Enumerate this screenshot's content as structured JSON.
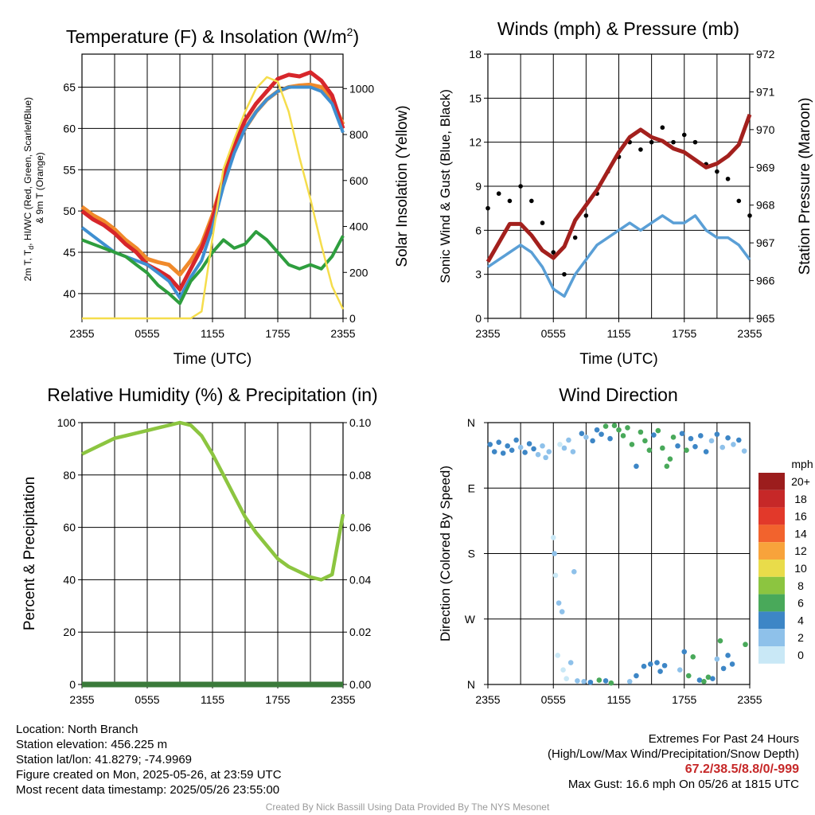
{
  "colors": {
    "temp": "#d7262b",
    "dew": "#3f8fd1",
    "hiwc": "#2e9e3e",
    "t9m": "#f08a2b",
    "solar": "#f5dd4c",
    "wind": "#5a9fd6",
    "gust": "#000000",
    "pressure": "#a3201d",
    "rh": "#8cc540",
    "precip": "#3a7a3a"
  },
  "chart_data": [
    {
      "id": "temperature",
      "type": "line",
      "title": "Temperature (F) & Insolation (W/m²)",
      "xlabel": "Time (UTC)",
      "ylabel": "2m T, Td, HI/WC (Red, Green, Scarlet/Blue) & 9m T (Orange)",
      "ylabel2": "Solar Insolation (Yellow)",
      "xticks": [
        "2355",
        "0555",
        "1155",
        "1755",
        "2355"
      ],
      "x_hours": [
        0,
        1,
        2,
        3,
        4,
        5,
        6,
        7,
        8,
        9,
        10,
        11,
        12,
        13,
        14,
        15,
        16,
        17,
        18,
        19,
        20,
        21,
        22,
        23,
        24
      ],
      "ylim": [
        37,
        69
      ],
      "yticks": [
        40,
        45,
        50,
        55,
        60,
        65
      ],
      "ylim2": [
        0,
        1150
      ],
      "yticks2": [
        0,
        200,
        400,
        600,
        800,
        1000
      ],
      "series": [
        {
          "key": "t9m",
          "axis": "left",
          "values": [
            50.5,
            49.5,
            48.8,
            47.8,
            46.5,
            45.5,
            44.2,
            43.8,
            43.5,
            42.3,
            44.0,
            46.0,
            49.5,
            54.0,
            57.5,
            60.0,
            62.0,
            63.5,
            64.5,
            65.0,
            65.2,
            65.3,
            65.0,
            63.5,
            60.5
          ]
        },
        {
          "key": "temp",
          "axis": "left",
          "values": [
            50.0,
            49.0,
            48.3,
            47.3,
            46.0,
            45.0,
            43.5,
            42.8,
            42.0,
            40.5,
            43.0,
            45.5,
            49.0,
            54.0,
            58.0,
            61.0,
            63.0,
            64.5,
            66.0,
            66.5,
            66.3,
            66.8,
            65.8,
            64.0,
            60.0
          ]
        },
        {
          "key": "dew",
          "axis": "left",
          "values": [
            48.0,
            47.0,
            46.0,
            45.0,
            44.5,
            44.0,
            43.5,
            42.5,
            41.5,
            39.5,
            42.0,
            44.0,
            48.0,
            53.0,
            57.0,
            60.0,
            62.0,
            63.5,
            64.5,
            65.0,
            65.0,
            65.0,
            64.5,
            63.0,
            59.5
          ]
        },
        {
          "key": "hiwc",
          "axis": "left",
          "values": [
            46.5,
            46.0,
            45.5,
            45.0,
            44.5,
            43.5,
            42.5,
            41.0,
            40.0,
            38.8,
            41.5,
            43.0,
            45.0,
            46.5,
            45.5,
            46.0,
            47.5,
            46.5,
            45.0,
            43.5,
            43.0,
            43.5,
            43.0,
            44.5,
            47.0
          ]
        },
        {
          "key": "solar",
          "axis": "right",
          "values": [
            0,
            0,
            0,
            0,
            0,
            0,
            0,
            0,
            0,
            0,
            0,
            30,
            350,
            650,
            780,
            900,
            1000,
            1050,
            1030,
            900,
            700,
            520,
            320,
            140,
            40
          ]
        }
      ]
    },
    {
      "id": "winds",
      "type": "line",
      "title": "Winds (mph) & Pressure (mb)",
      "xlabel": "Time (UTC)",
      "ylabel": "Sonic Wind & Gust (Blue, Black)",
      "ylabel2": "Station Pressure (Maroon)",
      "xticks": [
        "2355",
        "0555",
        "1155",
        "1755",
        "2355"
      ],
      "x_hours": [
        0,
        1,
        2,
        3,
        4,
        5,
        6,
        7,
        8,
        9,
        10,
        11,
        12,
        13,
        14,
        15,
        16,
        17,
        18,
        19,
        20,
        21,
        22,
        23,
        24
      ],
      "ylim": [
        0,
        18
      ],
      "yticks": [
        0,
        3,
        6,
        9,
        12,
        15,
        18
      ],
      "ylim2": [
        965,
        972
      ],
      "yticks2": [
        965,
        966,
        967,
        968,
        969,
        970,
        971,
        972
      ],
      "series": [
        {
          "key": "wind",
          "axis": "left",
          "values": [
            3.5,
            4.0,
            4.5,
            5.0,
            4.5,
            3.5,
            2.0,
            1.5,
            3.0,
            4.0,
            5.0,
            5.5,
            6.0,
            6.5,
            6.0,
            6.5,
            7.0,
            6.5,
            6.5,
            7.0,
            6.0,
            5.5,
            5.5,
            5.0,
            4.0
          ]
        },
        {
          "key": "gust",
          "axis": "left",
          "values": [
            7.5,
            8.5,
            8.0,
            9.0,
            8.0,
            6.5,
            4.5,
            3.0,
            5.5,
            7.0,
            8.5,
            10.0,
            11.0,
            12.0,
            11.5,
            12.0,
            13.0,
            12.0,
            12.5,
            12.0,
            10.5,
            10.0,
            9.5,
            8.0,
            7.0
          ]
        },
        {
          "key": "pressure",
          "axis": "right",
          "values": [
            966.5,
            967.0,
            967.5,
            967.5,
            967.2,
            966.8,
            966.6,
            966.9,
            967.6,
            968.0,
            968.4,
            968.9,
            969.4,
            969.8,
            970.0,
            969.8,
            969.7,
            969.5,
            969.4,
            969.2,
            969.0,
            969.1,
            969.3,
            969.6,
            970.4
          ]
        }
      ]
    },
    {
      "id": "humidity",
      "type": "line",
      "title": "Relative Humidity (%) & Precipitation (in)",
      "ylabel": "Percent & Precipitation",
      "xticks": [
        "2355",
        "0555",
        "1155",
        "1755",
        "2355"
      ],
      "x_hours": [
        0,
        1,
        2,
        3,
        4,
        5,
        6,
        7,
        8,
        9,
        10,
        11,
        12,
        13,
        14,
        15,
        16,
        17,
        18,
        19,
        20,
        21,
        22,
        23,
        24
      ],
      "ylim": [
        0,
        100
      ],
      "yticks": [
        0,
        20,
        40,
        60,
        80,
        100
      ],
      "ylim2": [
        0,
        0.1
      ],
      "yticks2": [
        "0.00",
        "0.02",
        "0.04",
        "0.06",
        "0.08",
        "0.10"
      ],
      "series": [
        {
          "key": "rh",
          "axis": "left",
          "values": [
            88,
            90,
            92,
            94,
            95,
            96,
            97,
            98,
            99,
            100,
            99,
            95,
            88,
            80,
            72,
            64,
            58,
            53,
            48,
            45,
            43,
            41,
            40,
            42,
            65
          ]
        },
        {
          "key": "precip",
          "axis": "right",
          "values": [
            0,
            0,
            0,
            0,
            0,
            0,
            0,
            0,
            0,
            0,
            0,
            0,
            0,
            0,
            0,
            0,
            0,
            0,
            0,
            0,
            0,
            0,
            0,
            0,
            0
          ]
        }
      ]
    },
    {
      "id": "direction",
      "type": "scatter",
      "title": "Wind Direction",
      "ylabel": "Direction (Colored By Speed)",
      "xticks": [
        "2355",
        "0555",
        "1155",
        "1755",
        "2355"
      ],
      "yticks": [
        "N",
        "W",
        "S",
        "E",
        "N"
      ],
      "ylim": [
        0,
        360
      ],
      "legend_title": "mph",
      "legend": [
        {
          "label": "20+",
          "color": "#9c1d1d"
        },
        {
          "label": "18",
          "color": "#c62828"
        },
        {
          "label": "16",
          "color": "#e2392a"
        },
        {
          "label": "14",
          "color": "#f2632d"
        },
        {
          "label": "12",
          "color": "#f8a33b"
        },
        {
          "label": "10",
          "color": "#e9dc4a"
        },
        {
          "label": "8",
          "color": "#8cc540"
        },
        {
          "label": "6",
          "color": "#49a95a"
        },
        {
          "label": "4",
          "color": "#3d86c6"
        },
        {
          "label": "2",
          "color": "#8ec1ea"
        },
        {
          "label": "0",
          "color": "#c9e8f6"
        }
      ],
      "points": [
        {
          "h": 0.2,
          "deg": 330,
          "s": 4
        },
        {
          "h": 0.6,
          "deg": 320,
          "s": 4
        },
        {
          "h": 1.0,
          "deg": 333,
          "s": 4
        },
        {
          "h": 1.4,
          "deg": 318,
          "s": 5
        },
        {
          "h": 1.8,
          "deg": 328,
          "s": 4
        },
        {
          "h": 2.2,
          "deg": 322,
          "s": 4
        },
        {
          "h": 2.6,
          "deg": 336,
          "s": 4
        },
        {
          "h": 3.0,
          "deg": 326,
          "s": 3
        },
        {
          "h": 3.4,
          "deg": 319,
          "s": 4
        },
        {
          "h": 3.8,
          "deg": 331,
          "s": 4
        },
        {
          "h": 4.2,
          "deg": 324,
          "s": 4
        },
        {
          "h": 4.6,
          "deg": 316,
          "s": 3
        },
        {
          "h": 5.0,
          "deg": 328,
          "s": 3
        },
        {
          "h": 5.3,
          "deg": 312,
          "s": 2
        },
        {
          "h": 5.6,
          "deg": 320,
          "s": 2
        },
        {
          "h": 6.0,
          "deg": 202,
          "s": 1
        },
        {
          "h": 6.1,
          "deg": 180,
          "s": 3
        },
        {
          "h": 6.2,
          "deg": 150,
          "s": 1
        },
        {
          "h": 6.5,
          "deg": 112,
          "s": 2
        },
        {
          "h": 6.8,
          "deg": 100,
          "s": 2
        },
        {
          "h": 6.4,
          "deg": 40,
          "s": 1
        },
        {
          "h": 6.9,
          "deg": 20,
          "s": 1
        },
        {
          "h": 7.2,
          "deg": 8,
          "s": 1
        },
        {
          "h": 7.6,
          "deg": 30,
          "s": 2
        },
        {
          "h": 7.9,
          "deg": 155,
          "s": 2
        },
        {
          "h": 8.2,
          "deg": 5,
          "s": 2
        },
        {
          "h": 6.6,
          "deg": 330,
          "s": 1
        },
        {
          "h": 7.0,
          "deg": 325,
          "s": 2
        },
        {
          "h": 7.4,
          "deg": 336,
          "s": 3
        },
        {
          "h": 7.8,
          "deg": 320,
          "s": 3
        },
        {
          "h": 8.6,
          "deg": 345,
          "s": 4
        },
        {
          "h": 9.0,
          "deg": 340,
          "s": 3
        },
        {
          "h": 9.6,
          "deg": 335,
          "s": 4
        },
        {
          "h": 10.0,
          "deg": 350,
          "s": 4
        },
        {
          "h": 10.4,
          "deg": 344,
          "s": 5
        },
        {
          "h": 10.8,
          "deg": 355,
          "s": 6
        },
        {
          "h": 11.2,
          "deg": 338,
          "s": 5
        },
        {
          "h": 11.6,
          "deg": 356,
          "s": 6
        },
        {
          "h": 12.0,
          "deg": 350,
          "s": 6
        },
        {
          "h": 12.4,
          "deg": 342,
          "s": 7
        },
        {
          "h": 12.8,
          "deg": 353,
          "s": 6
        },
        {
          "h": 13.2,
          "deg": 330,
          "s": 6
        },
        {
          "h": 13.6,
          "deg": 300,
          "s": 5
        },
        {
          "h": 14.0,
          "deg": 347,
          "s": 6
        },
        {
          "h": 14.4,
          "deg": 335,
          "s": 7
        },
        {
          "h": 14.8,
          "deg": 322,
          "s": 6
        },
        {
          "h": 15.2,
          "deg": 343,
          "s": 4
        },
        {
          "h": 15.6,
          "deg": 349,
          "s": 6
        },
        {
          "h": 16.0,
          "deg": 325,
          "s": 7
        },
        {
          "h": 16.4,
          "deg": 300,
          "s": 6
        },
        {
          "h": 16.7,
          "deg": 310,
          "s": 7
        },
        {
          "h": 17.0,
          "deg": 340,
          "s": 6
        },
        {
          "h": 17.4,
          "deg": 328,
          "s": 5
        },
        {
          "h": 17.8,
          "deg": 345,
          "s": 4
        },
        {
          "h": 18.2,
          "deg": 322,
          "s": 6
        },
        {
          "h": 18.6,
          "deg": 338,
          "s": 4
        },
        {
          "h": 19.0,
          "deg": 327,
          "s": 5
        },
        {
          "h": 19.5,
          "deg": 342,
          "s": 4
        },
        {
          "h": 20.0,
          "deg": 320,
          "s": 4
        },
        {
          "h": 20.5,
          "deg": 335,
          "s": 3
        },
        {
          "h": 21.0,
          "deg": 344,
          "s": 4
        },
        {
          "h": 21.5,
          "deg": 326,
          "s": 3
        },
        {
          "h": 22.0,
          "deg": 339,
          "s": 4
        },
        {
          "h": 22.5,
          "deg": 330,
          "s": 3
        },
        {
          "h": 23.0,
          "deg": 336,
          "s": 4
        },
        {
          "h": 23.5,
          "deg": 321,
          "s": 3
        },
        {
          "h": 8.8,
          "deg": 4,
          "s": 3
        },
        {
          "h": 9.4,
          "deg": 3,
          "s": 4
        },
        {
          "h": 10.2,
          "deg": 6,
          "s": 6
        },
        {
          "h": 10.8,
          "deg": 5,
          "s": 5
        },
        {
          "h": 11.3,
          "deg": 2,
          "s": 7
        },
        {
          "h": 13.0,
          "deg": 4,
          "s": 3
        },
        {
          "h": 13.6,
          "deg": 12,
          "s": 5
        },
        {
          "h": 14.3,
          "deg": 25,
          "s": 4
        },
        {
          "h": 14.9,
          "deg": 28,
          "s": 4
        },
        {
          "h": 15.5,
          "deg": 30,
          "s": 4
        },
        {
          "h": 15.8,
          "deg": 18,
          "s": 5
        },
        {
          "h": 16.2,
          "deg": 26,
          "s": 4
        },
        {
          "h": 17.6,
          "deg": 20,
          "s": 3
        },
        {
          "h": 18.0,
          "deg": 45,
          "s": 4
        },
        {
          "h": 18.4,
          "deg": 12,
          "s": 6
        },
        {
          "h": 18.8,
          "deg": 38,
          "s": 7
        },
        {
          "h": 19.4,
          "deg": 6,
          "s": 4
        },
        {
          "h": 19.8,
          "deg": 4,
          "s": 6
        },
        {
          "h": 20.2,
          "deg": 10,
          "s": 6
        },
        {
          "h": 20.6,
          "deg": 8,
          "s": 4
        },
        {
          "h": 21.0,
          "deg": 35,
          "s": 3
        },
        {
          "h": 21.3,
          "deg": 60,
          "s": 6
        },
        {
          "h": 21.6,
          "deg": 22,
          "s": 4
        },
        {
          "h": 22.0,
          "deg": 40,
          "s": 5
        },
        {
          "h": 22.4,
          "deg": 28,
          "s": 4
        },
        {
          "h": 23.6,
          "deg": 55,
          "s": 6
        }
      ]
    }
  ],
  "info": {
    "location": "Location: North Branch",
    "elevation": "Station elevation: 456.225 m",
    "latlon": "Station lat/lon: 41.8279; -74.9969",
    "created": "Figure created on Mon, 2025-05-26, at 23:59 UTC",
    "recent": "Most recent data timestamp: 2025/05/26 23:55:00"
  },
  "extremes": {
    "title": "Extremes For Past 24 Hours",
    "subtitle": "(High/Low/Max Wind/Precipitation/Snow Depth)",
    "values": "67.2/38.5/8.8/0/-999",
    "gust": "Max Gust: 16.6 mph On 05/26 at 1815 UTC"
  },
  "credit": "Created By Nick Bassill Using Data Provided By The NYS Mesonet"
}
